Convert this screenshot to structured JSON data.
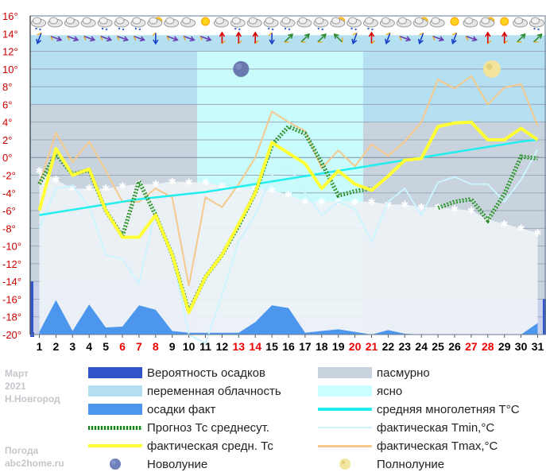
{
  "info": {
    "month": "Март",
    "year": "2021",
    "city": "Н.Новгород",
    "site_title": "Погода",
    "site_url": "abc2home.ru"
  },
  "colors": {
    "precip_prob": "#3355cc",
    "variable_cloud": "#b4e0f2",
    "precip_fact": "#4d96ee",
    "forecast": "#1f8a1f",
    "fact_mean": "#ffff33",
    "overcast": "#c8d3de",
    "clear": "#ccffff",
    "norm": "#22eeee",
    "tmin": "#ccf4ff",
    "tmax": "#f5c98c",
    "weekend": "#ee0000"
  },
  "legend": {
    "precip_prob": "Вероятность осадков",
    "variable_cloud": "переменная облачность",
    "precip_fact": "осадки факт",
    "forecast": "Прогноз Тс среднесут.",
    "fact_mean": "фактическая средн. Тс",
    "new_moon": "Новолуние",
    "overcast": "пасмурно",
    "clear": "ясно",
    "norm": "средняя многолетняя T°C",
    "tmin": "фактическая Tmin,°C",
    "tmax": "фактическая Tmax,°C",
    "full_moon": "Полнолуние"
  },
  "chart_data": {
    "type": "line",
    "x": [
      1,
      2,
      3,
      4,
      5,
      6,
      7,
      8,
      9,
      10,
      11,
      12,
      13,
      14,
      15,
      16,
      17,
      18,
      19,
      20,
      21,
      22,
      23,
      24,
      25,
      26,
      27,
      28,
      29,
      30,
      31
    ],
    "x_tick_labels": [
      "1",
      "2",
      "3",
      "4",
      "5",
      "6",
      "7",
      "8",
      "9",
      "10",
      "11",
      "12",
      "13",
      "14",
      "15",
      "16",
      "17",
      "18",
      "19",
      "20",
      "21",
      "22",
      "23",
      "24",
      "25",
      "26",
      "27",
      "28",
      "29",
      "30",
      "31"
    ],
    "weekend_days": [
      6,
      7,
      8,
      13,
      14,
      20,
      21,
      27,
      28
    ],
    "y_tick_labels": [
      "16°",
      "14°",
      "12°",
      "10°",
      "8°",
      "6°",
      "4°",
      "2°",
      "0°",
      "-2°",
      "-4°",
      "-6°",
      "-8°",
      "-10°",
      "-12°",
      "-14°",
      "-16°",
      "-18°",
      "-20°"
    ],
    "ylim": [
      -20,
      16
    ],
    "series": [
      {
        "name": "фактическая средн. Тс",
        "values": [
          -6,
          1,
          -2,
          -1.3,
          -6,
          -9,
          -9,
          -6.5,
          -11,
          -17.5,
          -13.5,
          -11,
          -7.5,
          -4,
          1.7,
          0.5,
          -0.7,
          -3.5,
          -1.5,
          -3,
          -3.7,
          -2.1,
          -0.3,
          -0.1,
          3.5,
          3.9,
          4,
          2,
          2,
          3.3,
          2
        ]
      },
      {
        "name": "Прогноз Тс среднесут.",
        "values": [
          -3,
          0.4,
          -1.9,
          -1.4,
          -6,
          -8.9,
          -2.7,
          -6.5,
          -11,
          -17.4,
          -13.5,
          -11,
          -7.7,
          -4,
          1.4,
          3.5,
          2.7,
          -0.6,
          -4.3,
          -3.8,
          -3.5,
          null,
          null,
          null,
          -5.7,
          -5,
          -4.7,
          -7.1,
          -4.1,
          0.1,
          -0.1
        ]
      },
      {
        "name": "фактическая Tmin,°C",
        "values": [
          -8,
          -3.5,
          -3.2,
          -5.5,
          -11,
          -11.5,
          -14.2,
          -6,
          -11,
          -20,
          -21,
          -15.5,
          -9.5,
          -6.5,
          -2,
          -0.8,
          -4,
          -6.5,
          -5,
          -5.8,
          -9.5,
          -5,
          -3.5,
          -6.5,
          -2.8,
          -2.2,
          -3,
          -3,
          -5,
          -2.5,
          0.9
        ]
      },
      {
        "name": "фактическая Tmax,°C",
        "values": [
          -3,
          2.8,
          -0.5,
          1.8,
          -1.5,
          -5,
          -5,
          -3.5,
          -4.5,
          -14.5,
          -4.5,
          -5.6,
          -3,
          0,
          5.2,
          4,
          3,
          -1.2,
          0.8,
          -1,
          1.5,
          0.2,
          1.8,
          4,
          8.8,
          7.8,
          9.2,
          6,
          7.9,
          8.3,
          3.6
        ]
      },
      {
        "name": "средняя многолетняя T°C",
        "values": [
          -6.5,
          -6.2,
          -5.9,
          -5.6,
          -5.3,
          -5,
          -4.7,
          -4.5,
          -4.3,
          -4.1,
          -3.9,
          -3.6,
          -3.3,
          -3,
          -2.7,
          -2.4,
          -2.1,
          -1.8,
          -1.5,
          -1.2,
          -0.9,
          -0.6,
          -0.3,
          0,
          0.3,
          0.6,
          0.9,
          1.2,
          1.5,
          1.8,
          2
        ]
      },
      {
        "name": "snow_cover",
        "values": [
          -1.5,
          -2.5,
          -3.5,
          -3.5,
          -3.5,
          -3.2,
          -3,
          -3,
          -2.7,
          -2.8,
          -2.8,
          -3.2,
          -3.5,
          -3.5,
          -3.7,
          -4.2,
          -5,
          -5,
          -5,
          -5,
          -5,
          -5.3,
          -5.3,
          -5.6,
          -5.6,
          -5.8,
          -6,
          -7,
          -7.5,
          -8,
          -8.5
        ]
      },
      {
        "name": "осадки факт",
        "values": [
          -19.7,
          -16.1,
          -19.6,
          -16.6,
          -19.2,
          -19.1,
          -16.7,
          -17.2,
          -19.6,
          -19.8,
          -19.8,
          -19.8,
          -19.8,
          -18.6,
          -16.7,
          -17,
          -19.8,
          -19.6,
          -19.4,
          -19.7,
          -20,
          -19.5,
          -19.9,
          -20,
          -20,
          -20,
          -20,
          -20,
          -20,
          -20,
          -18.7
        ]
      }
    ],
    "daily_weather_icons": [
      "cloud-snow",
      "cloud",
      "cloud",
      "cloud",
      "cloud-snow",
      "cloud-snow",
      "cloud-snow",
      "partly-sunny",
      "cloud",
      "cloud",
      "sun",
      "cloud",
      "cloud-snow",
      "cloud",
      "cloud-snow",
      "cloud-snow",
      "cloud",
      "cloud-snow",
      "partly-sunny",
      "cloud-snow",
      "cloud-snow",
      "cloud",
      "cloud",
      "partly-sunny",
      "cloud",
      "sun",
      "cloud",
      "partly-sunny",
      "sun",
      "cloud",
      "cloud-snow"
    ],
    "wind_directions_deg": [
      200,
      110,
      110,
      110,
      110,
      110,
      110,
      180,
      110,
      110,
      110,
      0,
      0,
      0,
      180,
      45,
      45,
      45,
      315,
      200,
      0,
      200,
      110,
      200,
      110,
      200,
      110,
      0,
      0,
      45,
      45
    ],
    "new_moon_day": 13,
    "full_moon_day": 28,
    "sky_bands": [
      {
        "from": 0.5,
        "to": 10.5,
        "top": 6,
        "cover": "overcast"
      },
      {
        "from": 10.5,
        "to": 20.5,
        "top": 12,
        "cover": "clear"
      },
      {
        "from": 20.5,
        "to": 31.5,
        "top": 4,
        "cover": "overcast"
      }
    ],
    "precip_prob_top": [
      {
        "from": 0.5,
        "to": 10.5,
        "value": -14
      },
      {
        "from": 10.5,
        "to": 20.5,
        "value": -18
      },
      {
        "from": 20.5,
        "to": 31.5,
        "value": -16
      }
    ],
    "grid": true
  }
}
